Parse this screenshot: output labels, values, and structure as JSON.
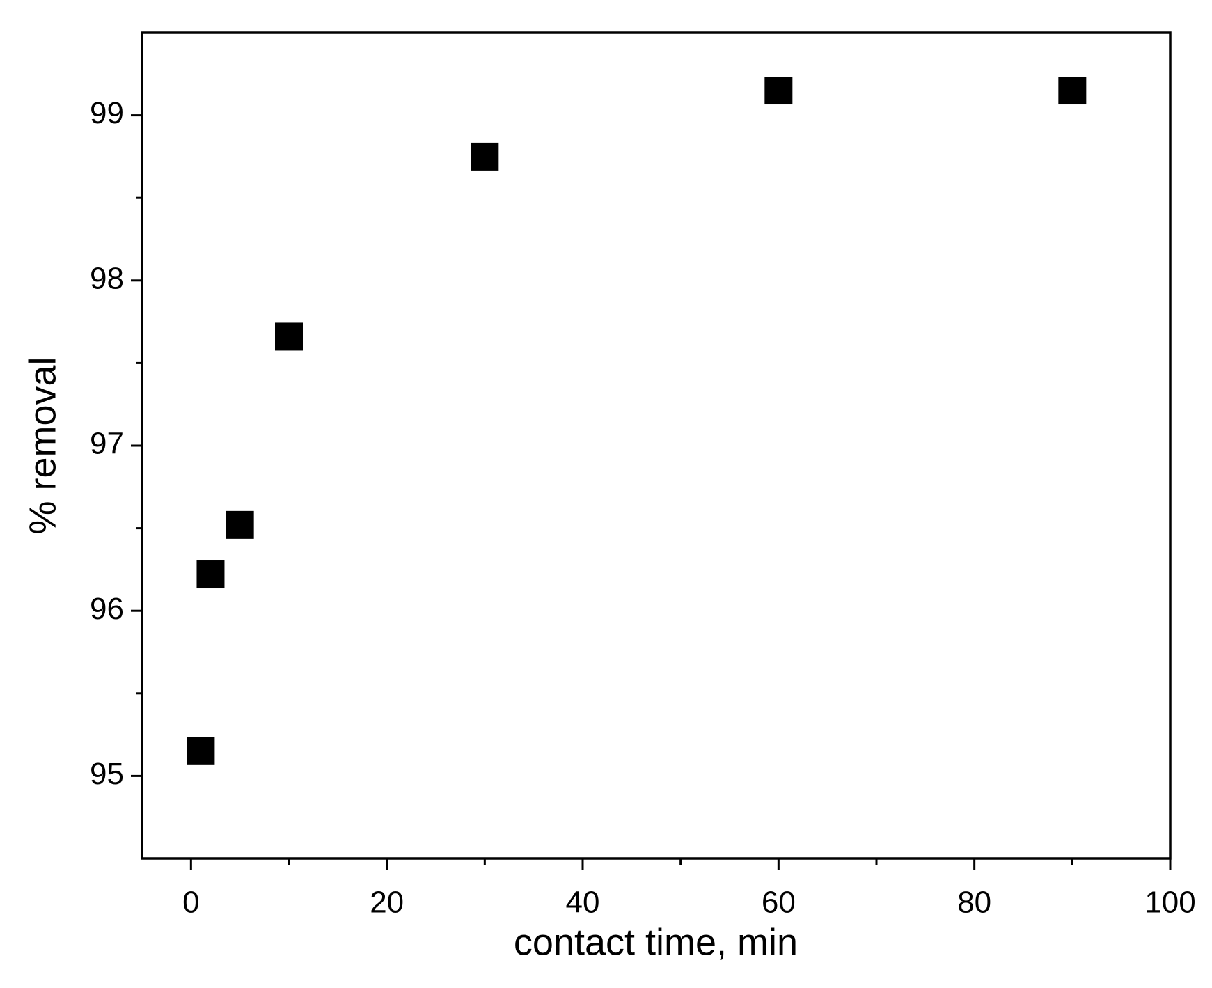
{
  "chart_data": {
    "type": "scatter",
    "x_label": "contact time, min",
    "y_label": "% removal",
    "x": [
      1,
      2,
      5,
      10,
      30,
      60,
      90
    ],
    "values": [
      95.15,
      96.22,
      96.52,
      97.66,
      98.75,
      99.15,
      99.15
    ],
    "color": "#000000",
    "marker": "square",
    "xlim": [
      -5,
      100
    ],
    "xticks": [
      0,
      20,
      40,
      60,
      80,
      100
    ],
    "ylim": [
      94.5,
      99.5
    ],
    "yticks": [
      95,
      96,
      97,
      98,
      99
    ],
    "grid": false
  }
}
